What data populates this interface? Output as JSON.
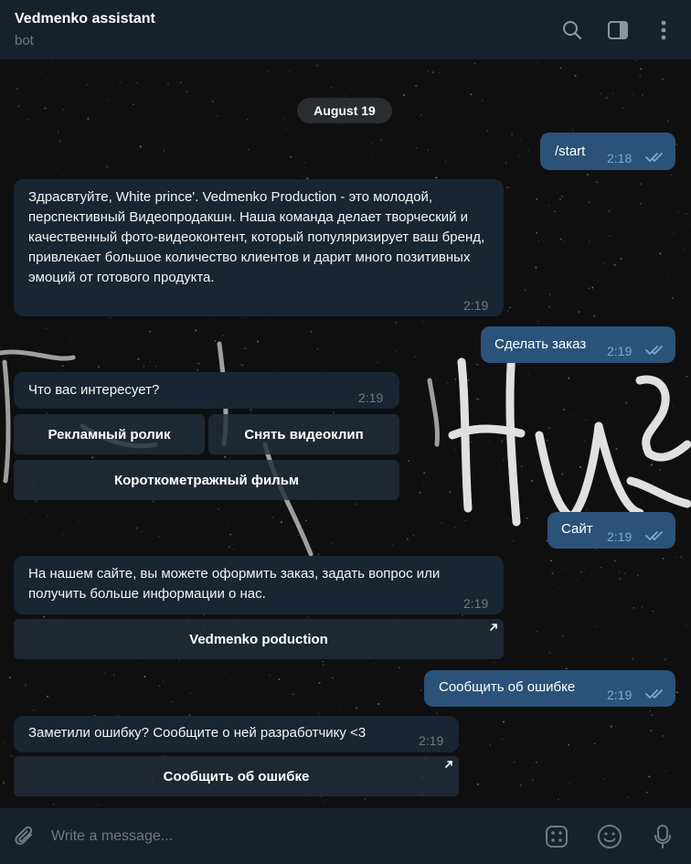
{
  "header": {
    "title": "Vedmenko assistant",
    "subtitle": "bot"
  },
  "chat": {
    "date": "August 19",
    "messages": [
      {
        "dir": "out",
        "text": "/start",
        "time": "2:18"
      },
      {
        "dir": "in",
        "text": "Здрасвтуйте, White prince'. Vedmenko Production - это молодой, перспективный Видеопродакшн. Наша команда делает творческий и качественный фото-видеоконтент, который популяризирует ваш бренд, привлекает большое количество клиентов и дарит много позитивных эмоций от готового продукта.",
        "time": "2:19"
      },
      {
        "dir": "out",
        "text": "Сделать заказ",
        "time": "2:19"
      },
      {
        "dir": "in",
        "text": "Что вас интересует?",
        "time": "2:19",
        "buttons": [
          "Рекламный ролик",
          "Снять видеоклип",
          "Короткометражный фильм"
        ]
      },
      {
        "dir": "out",
        "text": "Сайт",
        "time": "2:19"
      },
      {
        "dir": "in",
        "text": "На нашем сайте, вы можете оформить заказ, задать вопрос или получить больше информации о нас.",
        "time": "2:19",
        "buttons": [
          "Vedmenko poduction"
        ]
      },
      {
        "dir": "out",
        "text": "Сообщить об ошибке",
        "time": "2:19"
      },
      {
        "dir": "in",
        "text": "Заметили ошибку? Сообщите о ней разработчику <3",
        "time": "2:19",
        "buttons": [
          "Сообщить об ошибке"
        ]
      }
    ]
  },
  "composer": {
    "placeholder": "Write a message..."
  },
  "icons": {
    "header": [
      "search-icon",
      "sidebar-toggle-icon",
      "more-vertical-icon"
    ],
    "composer": [
      "attach-icon",
      "bot-commands-icon",
      "emoji-icon",
      "microphone-icon"
    ]
  },
  "colors": {
    "header_bg": "#17212b",
    "incoming_bubble": "#182533",
    "outgoing_bubble": "#2b5278",
    "read_ticks": "#7da8d3",
    "keyboard_button": "#222e3a"
  }
}
